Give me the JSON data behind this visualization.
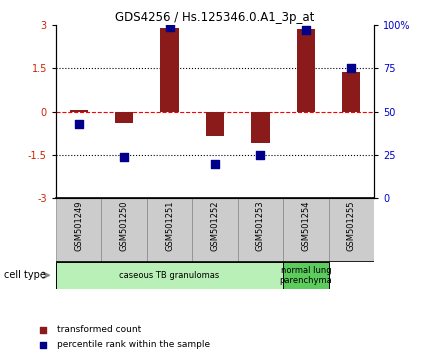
{
  "title": "GDS4256 / Hs.125346.0.A1_3p_at",
  "samples": [
    "GSM501249",
    "GSM501250",
    "GSM501251",
    "GSM501252",
    "GSM501253",
    "GSM501254",
    "GSM501255"
  ],
  "transformed_count": [
    0.05,
    -0.4,
    2.9,
    -0.85,
    -1.1,
    2.85,
    1.35
  ],
  "percentile_rank": [
    43,
    24,
    99,
    20,
    25,
    97,
    75
  ],
  "ylim_left": [
    -3,
    3
  ],
  "ylim_right": [
    0,
    100
  ],
  "yticks_left": [
    -3,
    -1.5,
    0,
    1.5,
    3
  ],
  "yticks_left_labels": [
    "-3",
    "-1.5",
    "0",
    "1.5",
    "3"
  ],
  "yticks_right": [
    0,
    25,
    50,
    75,
    100
  ],
  "yticks_right_labels": [
    "0",
    "25",
    "50",
    "75",
    "100%"
  ],
  "hlines": [
    -1.5,
    0,
    1.5
  ],
  "hline_styles": [
    "dotted",
    "dashed",
    "dotted"
  ],
  "hline_colors": [
    "black",
    "red",
    "black"
  ],
  "bar_color": "#8B1A1A",
  "dot_color": "#00008B",
  "bar_width": 0.4,
  "dot_size": 30,
  "cell_type_groups": [
    {
      "label": "caseous TB granulomas",
      "start": 0,
      "end": 5,
      "color": "#b8f0b8"
    },
    {
      "label": "normal lung\nparenchyma",
      "start": 5,
      "end": 6,
      "color": "#5ccc5c"
    }
  ],
  "legend_bar_label": "transformed count",
  "legend_dot_label": "percentile rank within the sample",
  "cell_type_label": "cell type",
  "background_color": "#ffffff",
  "tick_label_color_left": "#cc2200",
  "tick_label_color_right": "#0000cc",
  "xlabel_bg": "#cccccc",
  "xlabel_border": "#888888"
}
